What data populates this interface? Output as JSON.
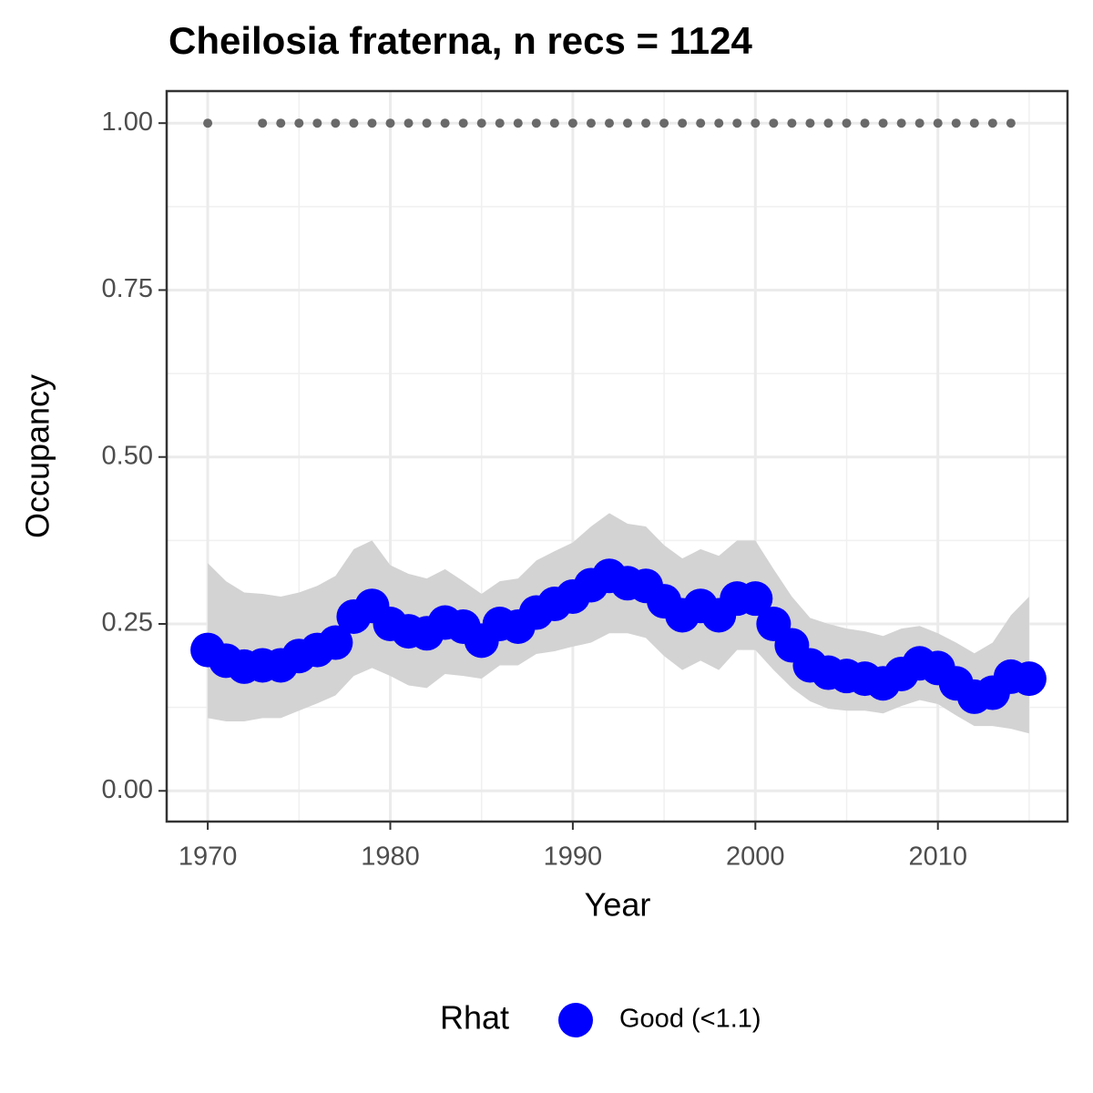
{
  "chart_data": {
    "type": "line",
    "title": "Cheilosia fraterna, n recs = 1124",
    "xlabel": "Year",
    "ylabel": "Occupancy",
    "x": [
      1970,
      1971,
      1972,
      1973,
      1974,
      1975,
      1976,
      1977,
      1978,
      1979,
      1980,
      1981,
      1982,
      1983,
      1984,
      1985,
      1986,
      1987,
      1988,
      1989,
      1990,
      1991,
      1992,
      1993,
      1994,
      1995,
      1996,
      1997,
      1998,
      1999,
      2000,
      2001,
      2002,
      2003,
      2004,
      2005,
      2006,
      2007,
      2008,
      2009,
      2010,
      2011,
      2012,
      2013,
      2014,
      2015
    ],
    "series": [
      {
        "name": "Good (<1.1)",
        "color": "#0000ff",
        "values": [
          0.211,
          0.195,
          0.186,
          0.188,
          0.188,
          0.202,
          0.211,
          0.222,
          0.261,
          0.277,
          0.25,
          0.239,
          0.236,
          0.252,
          0.246,
          0.225,
          0.25,
          0.246,
          0.267,
          0.28,
          0.291,
          0.308,
          0.322,
          0.311,
          0.307,
          0.284,
          0.263,
          0.277,
          0.263,
          0.288,
          0.288,
          0.25,
          0.218,
          0.188,
          0.177,
          0.172,
          0.168,
          0.161,
          0.175,
          0.191,
          0.184,
          0.161,
          0.141,
          0.147,
          0.171,
          0.168
        ]
      }
    ],
    "band": {
      "color": "#d3d3d3",
      "lower": [
        0.109,
        0.104,
        0.104,
        0.109,
        0.109,
        0.12,
        0.131,
        0.143,
        0.172,
        0.184,
        0.172,
        0.158,
        0.154,
        0.175,
        0.172,
        0.168,
        0.188,
        0.188,
        0.205,
        0.209,
        0.216,
        0.222,
        0.236,
        0.236,
        0.229,
        0.202,
        0.181,
        0.195,
        0.181,
        0.211,
        0.211,
        0.181,
        0.154,
        0.134,
        0.123,
        0.12,
        0.12,
        0.116,
        0.127,
        0.136,
        0.13,
        0.113,
        0.097,
        0.097,
        0.093,
        0.086
      ],
      "upper": [
        0.341,
        0.314,
        0.297,
        0.295,
        0.291,
        0.297,
        0.307,
        0.322,
        0.362,
        0.375,
        0.338,
        0.325,
        0.318,
        0.332,
        0.314,
        0.295,
        0.314,
        0.318,
        0.345,
        0.359,
        0.372,
        0.396,
        0.416,
        0.4,
        0.396,
        0.368,
        0.348,
        0.362,
        0.352,
        0.375,
        0.375,
        0.332,
        0.291,
        0.259,
        0.25,
        0.243,
        0.239,
        0.232,
        0.243,
        0.247,
        0.236,
        0.222,
        0.206,
        0.222,
        0.263,
        0.291
      ]
    },
    "records": {
      "color": "#696969",
      "x": [
        1970,
        1973,
        1974,
        1975,
        1976,
        1977,
        1978,
        1979,
        1980,
        1981,
        1982,
        1983,
        1984,
        1985,
        1986,
        1987,
        1988,
        1989,
        1990,
        1991,
        1992,
        1993,
        1994,
        1995,
        1996,
        1997,
        1998,
        1999,
        2000,
        2001,
        2002,
        2003,
        2004,
        2005,
        2006,
        2007,
        2008,
        2009,
        2010,
        2011,
        2012,
        2013,
        2014
      ],
      "values": [
        1,
        1,
        1,
        1,
        1,
        1,
        1,
        1,
        1,
        1,
        1,
        1,
        1,
        1,
        1,
        1,
        1,
        1,
        1,
        1,
        1,
        1,
        1,
        1,
        1,
        1,
        1,
        1,
        1,
        1,
        1,
        1,
        1,
        1,
        1,
        1,
        1,
        1,
        1,
        1,
        1,
        1,
        1
      ]
    },
    "legend_title": "Rhat",
    "legend": "bottom",
    "xlim": [
      1967.75,
      2017.1
    ],
    "ylim": [
      -0.046,
      1.048
    ],
    "xticks": [
      1970,
      1980,
      1990,
      2000,
      2010
    ],
    "yticks": [
      {
        "value": 0,
        "label": "0.00"
      },
      {
        "value": 0.25,
        "label": "0.25"
      },
      {
        "value": 0.5,
        "label": "0.50"
      },
      {
        "value": 0.75,
        "label": "0.75"
      },
      {
        "value": 1,
        "label": "1.00"
      }
    ],
    "minor_xticks": [
      1975,
      1985,
      1995,
      2005,
      2015
    ],
    "minor_yticks": [
      0.125,
      0.375,
      0.625,
      0.875
    ],
    "grid": true
  }
}
